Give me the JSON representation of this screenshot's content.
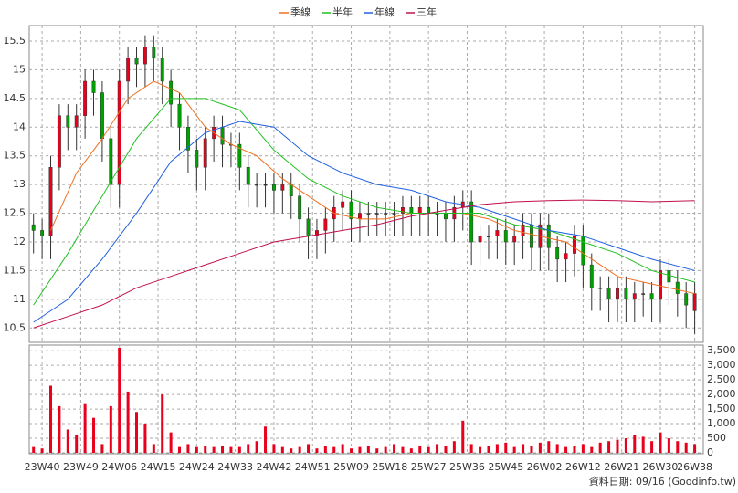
{
  "chart_data": {
    "type": "candlestick",
    "xlim": [
      -1,
      156
    ],
    "xticks": [
      {
        "value": 2,
        "label": "23W40"
      },
      {
        "value": 11,
        "label": "23W49"
      },
      {
        "value": 20,
        "label": "24W06"
      },
      {
        "value": 29,
        "label": "24W15"
      },
      {
        "value": 38,
        "label": "24W24"
      },
      {
        "value": 47,
        "label": "24W33"
      },
      {
        "value": 56,
        "label": "24W42"
      },
      {
        "value": 65,
        "label": "24W51"
      },
      {
        "value": 74,
        "label": "25W09"
      },
      {
        "value": 83,
        "label": "25W18"
      },
      {
        "value": 92,
        "label": "25W27"
      },
      {
        "value": 101,
        "label": "25W36"
      },
      {
        "value": 110,
        "label": "25W45"
      },
      {
        "value": 119,
        "label": "26W02"
      },
      {
        "value": 128,
        "label": "26W12"
      },
      {
        "value": 137,
        "label": "26W21"
      },
      {
        "value": 146,
        "label": "26W30"
      },
      {
        "value": 154,
        "label": "26W38"
      }
    ],
    "ylim": [
      10.25,
      15.77
    ],
    "yticks": [
      10.5,
      11,
      11.5,
      12,
      12.5,
      13,
      13.5,
      14,
      14.5,
      15,
      15.5
    ],
    "grid": true,
    "up_color": "#e8001c",
    "down_color": "#00a000",
    "candles": {
      "x": [
        0,
        2,
        4,
        6,
        8,
        10,
        12,
        14,
        16,
        18,
        20,
        22,
        24,
        26,
        28,
        30,
        32,
        34,
        36,
        38,
        40,
        42,
        44,
        46,
        48,
        50,
        52,
        54,
        56,
        58,
        60,
        62,
        64,
        66,
        68,
        70,
        72,
        74,
        76,
        78,
        80,
        82,
        84,
        86,
        88,
        90,
        92,
        94,
        96,
        98,
        100,
        102,
        104,
        106,
        108,
        110,
        112,
        114,
        116,
        118,
        120,
        122,
        124,
        126,
        128,
        130,
        132,
        134,
        136,
        138,
        140,
        142,
        144,
        146,
        148,
        150,
        152,
        154
      ],
      "open": [
        12.3,
        12.2,
        12.1,
        13.3,
        14.2,
        14.0,
        14.2,
        14.8,
        14.6,
        13.8,
        13.0,
        14.8,
        15.2,
        15.1,
        15.4,
        15.2,
        14.8,
        14.4,
        14.0,
        13.6,
        13.3,
        13.8,
        14.0,
        13.7,
        13.7,
        13.3,
        13.0,
        13.0,
        13.0,
        12.9,
        13.0,
        12.8,
        12.4,
        12.1,
        12.2,
        12.4,
        12.6,
        12.7,
        12.4,
        12.5,
        12.5,
        12.5,
        12.5,
        12.5,
        12.6,
        12.5,
        12.6,
        12.5,
        12.5,
        12.4,
        12.6,
        12.7,
        12.0,
        12.1,
        12.1,
        12.2,
        12.0,
        12.1,
        12.3,
        11.9,
        12.3,
        11.9,
        11.7,
        11.8,
        12.1,
        11.6,
        11.2,
        11.2,
        11.0,
        11.2,
        11.0,
        11.1,
        11.1,
        11.0,
        11.5,
        11.3,
        11.1,
        10.8
      ],
      "high": [
        12.5,
        12.4,
        13.5,
        14.4,
        14.4,
        14.4,
        15.0,
        15.0,
        14.8,
        14.0,
        15.0,
        15.4,
        15.4,
        15.6,
        15.6,
        15.4,
        15.0,
        14.6,
        14.2,
        13.8,
        14.0,
        14.2,
        14.2,
        13.9,
        13.9,
        13.5,
        13.2,
        13.2,
        13.2,
        13.2,
        13.2,
        13.0,
        12.6,
        12.4,
        12.6,
        12.8,
        12.9,
        12.9,
        12.7,
        12.7,
        12.7,
        12.7,
        12.7,
        12.8,
        12.8,
        12.8,
        12.8,
        12.7,
        12.7,
        12.8,
        12.9,
        12.9,
        12.3,
        12.3,
        12.4,
        12.4,
        12.3,
        12.5,
        12.5,
        12.5,
        12.5,
        12.1,
        12.0,
        12.3,
        12.3,
        11.8,
        11.4,
        11.4,
        11.4,
        11.4,
        11.3,
        11.3,
        11.3,
        11.7,
        11.7,
        11.5,
        11.3,
        11.3
      ],
      "low": [
        11.8,
        11.7,
        11.7,
        12.9,
        13.6,
        13.6,
        13.8,
        14.2,
        13.4,
        12.6,
        12.6,
        14.4,
        14.7,
        14.7,
        14.8,
        14.4,
        14.0,
        13.6,
        13.2,
        12.9,
        12.9,
        13.4,
        13.3,
        13.3,
        12.9,
        12.6,
        12.6,
        12.6,
        12.5,
        12.5,
        12.4,
        12.0,
        11.7,
        11.7,
        11.8,
        12.0,
        12.2,
        12.0,
        12.0,
        12.1,
        12.1,
        12.1,
        12.1,
        12.1,
        12.1,
        12.1,
        12.1,
        12.1,
        12.0,
        12.0,
        12.2,
        11.6,
        11.6,
        11.7,
        11.7,
        11.6,
        11.6,
        11.7,
        11.5,
        11.5,
        11.5,
        11.3,
        11.3,
        11.4,
        11.2,
        10.8,
        10.8,
        10.6,
        10.6,
        10.6,
        10.6,
        10.7,
        10.6,
        10.6,
        10.9,
        10.7,
        10.5,
        10.4
      ],
      "close": [
        12.2,
        12.1,
        13.3,
        14.2,
        14.0,
        14.2,
        14.8,
        14.6,
        13.8,
        13.0,
        14.8,
        15.2,
        15.1,
        15.4,
        15.2,
        14.8,
        14.4,
        14.0,
        13.6,
        13.3,
        13.8,
        14.0,
        13.7,
        13.7,
        13.3,
        13.0,
        13.0,
        13.0,
        12.9,
        13.0,
        12.8,
        12.4,
        12.1,
        12.2,
        12.4,
        12.6,
        12.7,
        12.4,
        12.5,
        12.5,
        12.5,
        12.5,
        12.5,
        12.6,
        12.5,
        12.6,
        12.5,
        12.5,
        12.4,
        12.6,
        12.7,
        12.0,
        12.1,
        12.1,
        12.2,
        12.0,
        12.1,
        12.3,
        11.9,
        12.3,
        11.9,
        11.7,
        11.8,
        12.1,
        11.6,
        11.2,
        11.2,
        11.0,
        11.2,
        11.0,
        11.1,
        11.1,
        11.0,
        11.5,
        11.3,
        11.1,
        10.9,
        11.1
      ]
    },
    "series": [
      {
        "name": "季線",
        "color": "#f07020",
        "x": [
          4,
          10,
          16,
          22,
          28,
          34,
          40,
          46,
          52,
          58,
          64,
          70,
          76,
          82,
          88,
          94,
          100,
          106,
          112,
          118,
          124,
          130,
          136,
          142,
          148,
          154
        ],
        "values": [
          12.2,
          13.2,
          13.8,
          14.5,
          14.8,
          14.6,
          14.0,
          13.7,
          13.5,
          13.1,
          12.8,
          12.5,
          12.4,
          12.4,
          12.5,
          12.5,
          12.5,
          12.4,
          12.2,
          12.1,
          12.0,
          11.7,
          11.4,
          11.3,
          11.2,
          11.1
        ]
      },
      {
        "name": "半年",
        "color": "#20c020",
        "x": [
          0,
          8,
          16,
          24,
          32,
          40,
          48,
          56,
          64,
          72,
          80,
          88,
          96,
          104,
          112,
          120,
          128,
          136,
          144,
          154
        ],
        "values": [
          10.9,
          11.8,
          12.8,
          13.8,
          14.5,
          14.5,
          14.3,
          13.6,
          13.1,
          12.8,
          12.6,
          12.5,
          12.5,
          12.5,
          12.3,
          12.2,
          12.0,
          11.8,
          11.5,
          11.3
        ]
      },
      {
        "name": "年線",
        "color": "#2060e0",
        "x": [
          0,
          8,
          16,
          24,
          32,
          40,
          48,
          56,
          64,
          72,
          80,
          88,
          96,
          104,
          112,
          120,
          128,
          136,
          144,
          154
        ],
        "values": [
          10.6,
          11.0,
          11.7,
          12.5,
          13.4,
          13.9,
          14.1,
          14.0,
          13.5,
          13.2,
          13.0,
          12.9,
          12.7,
          12.6,
          12.4,
          12.2,
          12.1,
          11.9,
          11.7,
          11.5
        ]
      },
      {
        "name": "三年",
        "color": "#c01050",
        "x": [
          0,
          8,
          16,
          24,
          32,
          40,
          48,
          56,
          64,
          72,
          80,
          88,
          96,
          104,
          112,
          120,
          128,
          136,
          144,
          154
        ],
        "values": [
          10.5,
          10.7,
          10.9,
          11.2,
          11.4,
          11.6,
          11.8,
          12.0,
          12.1,
          12.2,
          12.3,
          12.45,
          12.55,
          12.65,
          12.7,
          12.72,
          12.73,
          12.72,
          12.7,
          12.72
        ]
      }
    ],
    "volume": {
      "color": "#e8001c",
      "ylim": [
        0,
        3600
      ],
      "yticks": [
        0,
        500,
        {
          "value": 1000,
          "label": "1,000"
        },
        {
          "value": 1500,
          "label": "1,500"
        },
        {
          "value": 2000,
          "label": "2,000"
        },
        {
          "value": 2500,
          "label": "2,500"
        },
        {
          "value": 3000,
          "label": "3,000"
        },
        {
          "value": 3500,
          "label": "3,500"
        }
      ],
      "values": [
        200,
        150,
        2300,
        1600,
        800,
        600,
        1700,
        1200,
        300,
        1600,
        3600,
        2100,
        1400,
        1000,
        300,
        2000,
        700,
        200,
        300,
        200,
        250,
        200,
        250,
        200,
        200,
        300,
        400,
        900,
        300,
        200,
        150,
        200,
        300,
        150,
        250,
        200,
        300,
        150,
        200,
        250,
        150,
        200,
        300,
        200,
        150,
        250,
        200,
        300,
        250,
        400,
        1100,
        300,
        200,
        250,
        300,
        350,
        200,
        300,
        250,
        350,
        400,
        300,
        200,
        250,
        300,
        200,
        350,
        400,
        450,
        500,
        600,
        550,
        400,
        700,
        500,
        400,
        350,
        300
      ]
    },
    "footer": "資料日期: 09/16  (Goodinfo.tw)"
  }
}
